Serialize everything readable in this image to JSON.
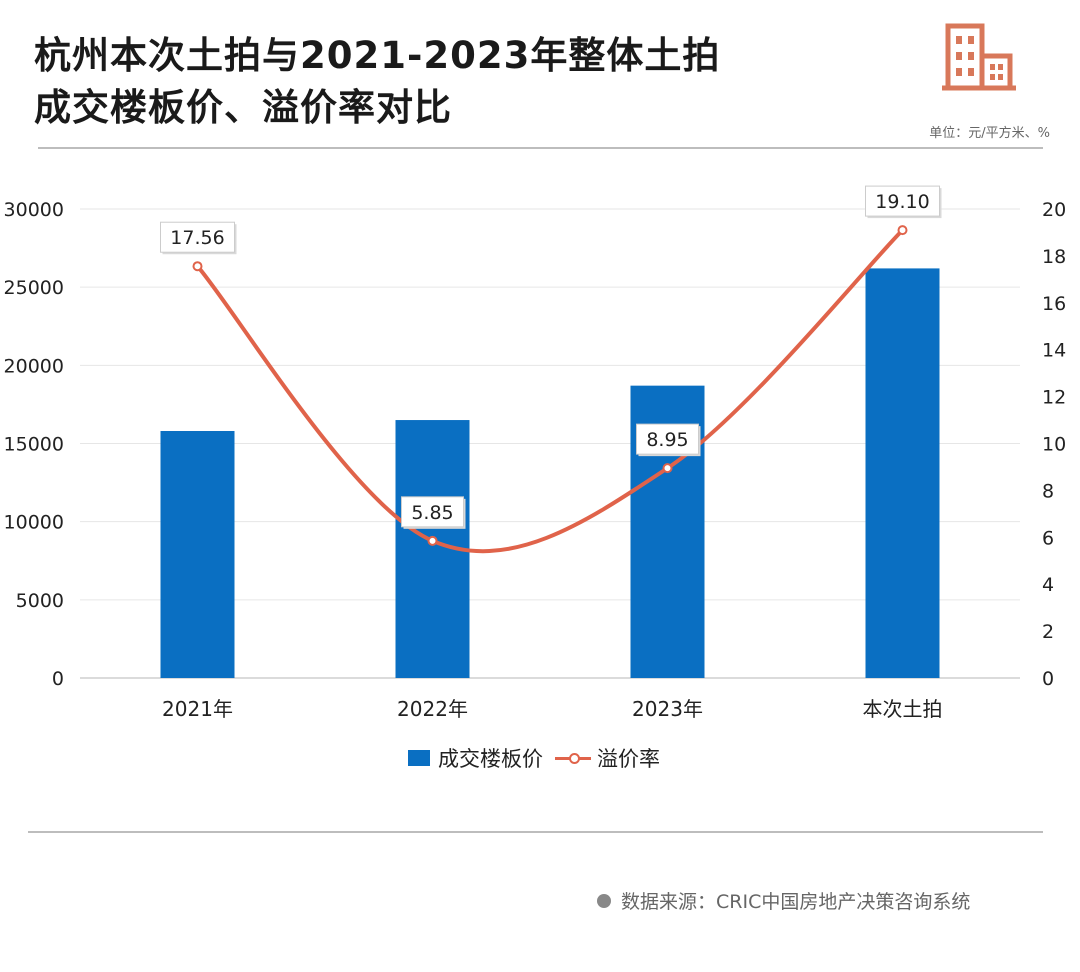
{
  "title_line1": "杭州本次土拍与2021-2023年整体土拍",
  "title_line2": "成交楼板价、溢价率对比",
  "unit_label": "单位：元/平方米、%",
  "source_label": "数据来源：CRIC中国房地产决策咨询系统",
  "colors": {
    "bar": "#0a6fc2",
    "line": "#e0634a",
    "grid": "#e6e6e6",
    "rule": "#bdbdbd"
  },
  "icons": [
    "building-icon",
    "legend-dot-icon"
  ],
  "chart_data": {
    "type": "bar",
    "categories": [
      "2021年",
      "2022年",
      "2023年",
      "本次土拍"
    ],
    "series": [
      {
        "name": "成交楼板价",
        "type": "bar",
        "axis": "left",
        "values": [
          15800,
          16500,
          18700,
          26200
        ]
      },
      {
        "name": "溢价率",
        "type": "line",
        "axis": "right",
        "values": [
          17.56,
          5.85,
          8.95,
          19.1
        ],
        "labels": [
          "17.56",
          "5.85",
          "8.95",
          "19.10"
        ]
      }
    ],
    "y_left": {
      "ylim": [
        0,
        30000
      ],
      "ticks": [
        "0",
        "5000",
        "10000",
        "15000",
        "20000",
        "25000",
        "30000"
      ]
    },
    "y_right": {
      "ylim": [
        0,
        20
      ],
      "ticks": [
        "0",
        "2",
        "4",
        "6",
        "8",
        "10",
        "12",
        "14",
        "16",
        "18",
        "20"
      ]
    },
    "grid": true,
    "legend": "bottom-center"
  }
}
